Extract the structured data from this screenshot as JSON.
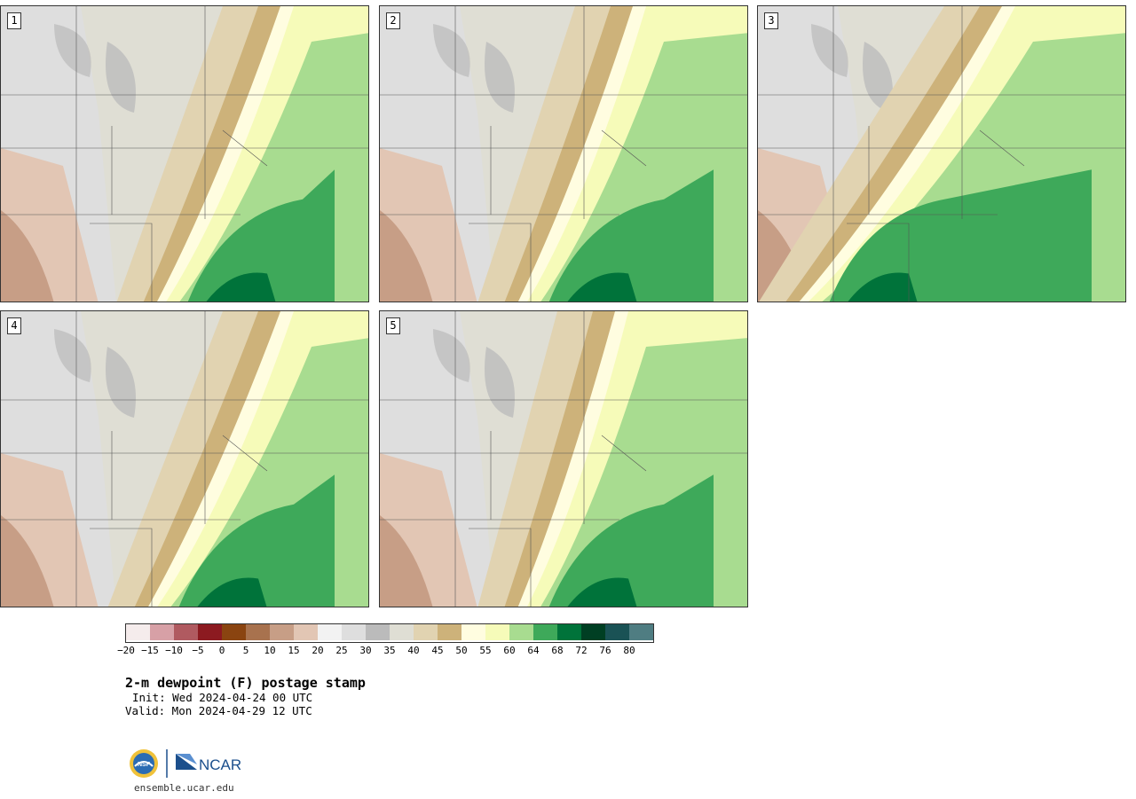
{
  "panels": [
    {
      "label": "1"
    },
    {
      "label": "2"
    },
    {
      "label": "3"
    },
    {
      "label": "4"
    },
    {
      "label": "5"
    }
  ],
  "colorbar": {
    "colors": [
      "#f5ecec",
      "#d7a0a6",
      "#b05a60",
      "#8c1a20",
      "#8a4410",
      "#a8724e",
      "#c79e86",
      "#e2c6b4",
      "#f2f2f2",
      "#dedede",
      "#bbbbbb",
      "#dfded4",
      "#e1d3b1",
      "#cdb27a",
      "#fffde0",
      "#f6fbb9",
      "#a8dc90",
      "#3ea95a",
      "#00733a",
      "#003f23",
      "#1a5255",
      "#4f7d82"
    ],
    "ticks": [
      "−20",
      "−15",
      "−10",
      "−5",
      "0",
      "5",
      "10",
      "15",
      "20",
      "25",
      "30",
      "35",
      "40",
      "45",
      "50",
      "55",
      "60",
      "64",
      "68",
      "72",
      "76",
      "80"
    ]
  },
  "title": "2-m dewpoint (F) postage stamp",
  "init": "Init: Wed 2024-04-24 00 UTC",
  "valid": "Valid: Mon 2024-04-29 12 UTC",
  "logo": {
    "nsf": "NSF",
    "ncar": "NCAR"
  },
  "site": "ensemble.ucar.edu"
}
